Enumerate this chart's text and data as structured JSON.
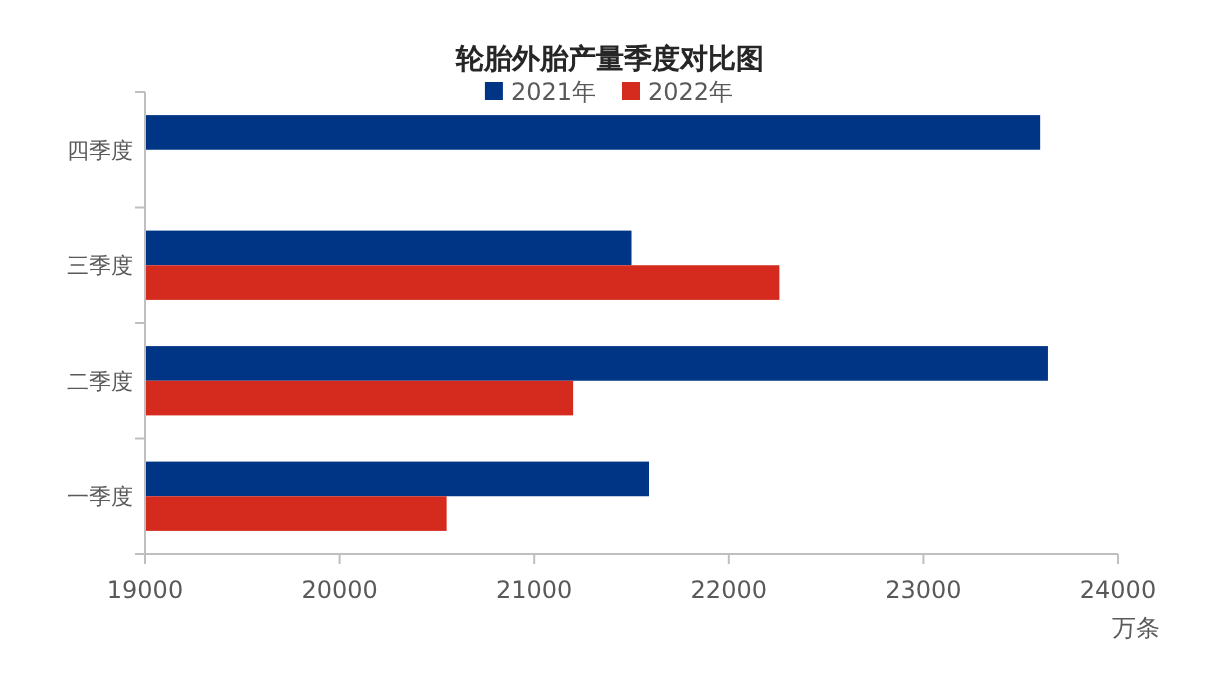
{
  "chart_data": {
    "type": "bar",
    "orientation": "horizontal",
    "title": "轮胎外胎产量季度对比图",
    "xlabel": "万条",
    "categories": [
      "四季度",
      "三季度",
      "二季度",
      "一季度"
    ],
    "series": [
      {
        "name": "2021年",
        "color": "#003586",
        "values": [
          23600,
          21500,
          23640,
          21590
        ]
      },
      {
        "name": "2022年",
        "color": "#d52b1e",
        "values": [
          null,
          22260,
          21200,
          20550
        ]
      }
    ],
    "xlim": [
      19000,
      24000
    ],
    "xticks": [
      19000,
      20000,
      21000,
      22000,
      23000,
      24000
    ],
    "grid": false,
    "legend": "top"
  }
}
